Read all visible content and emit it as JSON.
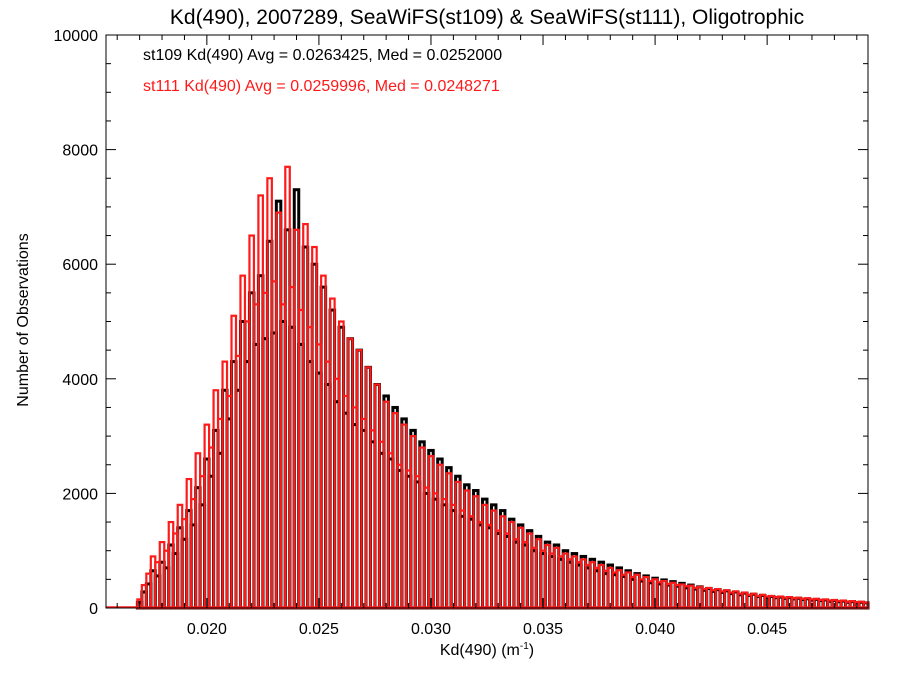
{
  "chart_data": {
    "type": "bar",
    "title": "Kd(490), 2007289, SeaWiFS(st109) & SeaWiFS(st111), Oligotrophic",
    "xlabel": "Kd(490) (m",
    "xlabel_sup": "-1",
    "xlabel_close": ")",
    "ylabel": "Number of Observations",
    "xlim": [
      0.0155,
      0.0495
    ],
    "ylim": [
      0,
      10000
    ],
    "bin_width": 0.0002,
    "x_ticks": [
      0.02,
      0.025,
      0.03,
      0.035,
      0.04,
      0.045
    ],
    "x_tick_labels": [
      "0.020",
      "0.025",
      "0.030",
      "0.035",
      "0.040",
      "0.045"
    ],
    "y_ticks": [
      0,
      2000,
      4000,
      6000,
      8000,
      10000
    ],
    "y_tick_labels": [
      "0",
      "2000",
      "4000",
      "6000",
      "8000",
      "10000"
    ],
    "legend_position": "top-left",
    "series": [
      {
        "name": "st109",
        "color": "#000000",
        "stats_label": "st109 Kd(490) Avg = 0.0263425, Med = 0.0252000",
        "x": [
          0.017,
          0.0172,
          0.0174,
          0.0176,
          0.0178,
          0.018,
          0.0182,
          0.0184,
          0.0186,
          0.0188,
          0.019,
          0.0192,
          0.0194,
          0.0196,
          0.0198,
          0.02,
          0.0202,
          0.0204,
          0.0206,
          0.0208,
          0.021,
          0.0212,
          0.0214,
          0.0216,
          0.0218,
          0.022,
          0.0222,
          0.0224,
          0.0226,
          0.0228,
          0.023,
          0.0232,
          0.0234,
          0.0236,
          0.0238,
          0.024,
          0.0242,
          0.0244,
          0.0246,
          0.0248,
          0.025,
          0.0252,
          0.0254,
          0.0256,
          0.0258,
          0.026,
          0.0262,
          0.0264,
          0.0266,
          0.0268,
          0.027,
          0.0272,
          0.0274,
          0.0276,
          0.0278,
          0.028,
          0.0282,
          0.0284,
          0.0286,
          0.0288,
          0.029,
          0.0292,
          0.0294,
          0.0296,
          0.0298,
          0.03,
          0.0302,
          0.0304,
          0.0306,
          0.0308,
          0.031,
          0.0312,
          0.0314,
          0.0316,
          0.0318,
          0.032,
          0.0322,
          0.0324,
          0.0326,
          0.0328,
          0.033,
          0.0332,
          0.0334,
          0.0336,
          0.0338,
          0.034,
          0.0342,
          0.0344,
          0.0346,
          0.0348,
          0.035,
          0.0352,
          0.0354,
          0.0356,
          0.0358,
          0.036,
          0.0362,
          0.0364,
          0.0366,
          0.0368,
          0.037,
          0.0372,
          0.0374,
          0.0376,
          0.0378,
          0.038,
          0.0382,
          0.0384,
          0.0386,
          0.0388,
          0.039,
          0.0392,
          0.0394,
          0.0396,
          0.0398,
          0.04,
          0.0402,
          0.0404,
          0.0406,
          0.0408,
          0.041,
          0.0412,
          0.0414,
          0.0416,
          0.0418,
          0.042,
          0.0422,
          0.0424,
          0.0426,
          0.0428,
          0.043,
          0.0432,
          0.0434,
          0.0436,
          0.0438,
          0.044,
          0.0442,
          0.0444,
          0.0446,
          0.0448,
          0.045,
          0.0452,
          0.0454,
          0.0456,
          0.0458,
          0.046,
          0.0462,
          0.0464,
          0.0466,
          0.0468,
          0.047,
          0.0472,
          0.0474,
          0.0476,
          0.0478,
          0.048,
          0.0482,
          0.0484,
          0.0486,
          0.0488,
          0.049,
          0.0492,
          0.0494
        ],
        "values": [
          100,
          280,
          420,
          650,
          560,
          800,
          700,
          1100,
          950,
          1400,
          1200,
          1700,
          1450,
          2100,
          1800,
          2600,
          2300,
          3100,
          2700,
          3800,
          3300,
          4300,
          3800,
          5000,
          4300,
          5500,
          4600,
          5800,
          4700,
          6400,
          4800,
          7100,
          5000,
          6600,
          4900,
          7300,
          4600,
          6300,
          4300,
          6000,
          4100,
          5600,
          3900,
          5200,
          3600,
          4900,
          3400,
          4700,
          3200,
          4500,
          3100,
          4200,
          2900,
          3900,
          2700,
          3700,
          2600,
          3500,
          2400,
          3300,
          2300,
          3100,
          2200,
          2900,
          2000,
          2750,
          1900,
          2600,
          1800,
          2450,
          1700,
          2300,
          1600,
          2150,
          1550,
          2050,
          1450,
          1900,
          1400,
          1800,
          1300,
          1700,
          1250,
          1550,
          1150,
          1450,
          1100,
          1350,
          1000,
          1250,
          950,
          1150,
          900,
          1100,
          850,
          1000,
          800,
          950,
          750,
          900,
          700,
          850,
          650,
          800,
          600,
          750,
          580,
          700,
          550,
          650,
          500,
          600,
          470,
          560,
          440,
          520,
          420,
          490,
          400,
          460,
          380,
          430,
          350,
          400,
          330,
          370,
          310,
          340,
          290,
          320,
          270,
          300,
          250,
          280,
          230,
          260,
          220,
          240,
          200,
          220,
          190,
          200,
          180,
          190,
          170,
          180,
          160,
          170,
          150,
          160,
          140,
          150,
          130,
          140,
          120,
          130,
          110,
          120,
          100,
          110,
          95,
          100,
          90
        ]
      },
      {
        "name": "st111",
        "color": "#ff1a1a",
        "stats_label": "st111 Kd(490) Avg = 0.0259996, Med = 0.0248271",
        "x": [
          0.017,
          0.0172,
          0.0174,
          0.0176,
          0.0178,
          0.018,
          0.0182,
          0.0184,
          0.0186,
          0.0188,
          0.019,
          0.0192,
          0.0194,
          0.0196,
          0.0198,
          0.02,
          0.0202,
          0.0204,
          0.0206,
          0.0208,
          0.021,
          0.0212,
          0.0214,
          0.0216,
          0.0218,
          0.022,
          0.0222,
          0.0224,
          0.0226,
          0.0228,
          0.023,
          0.0232,
          0.0234,
          0.0236,
          0.0238,
          0.024,
          0.0242,
          0.0244,
          0.0246,
          0.0248,
          0.025,
          0.0252,
          0.0254,
          0.0256,
          0.0258,
          0.026,
          0.0262,
          0.0264,
          0.0266,
          0.0268,
          0.027,
          0.0272,
          0.0274,
          0.0276,
          0.0278,
          0.028,
          0.0282,
          0.0284,
          0.0286,
          0.0288,
          0.029,
          0.0292,
          0.0294,
          0.0296,
          0.0298,
          0.03,
          0.0302,
          0.0304,
          0.0306,
          0.0308,
          0.031,
          0.0312,
          0.0314,
          0.0316,
          0.0318,
          0.032,
          0.0322,
          0.0324,
          0.0326,
          0.0328,
          0.033,
          0.0332,
          0.0334,
          0.0336,
          0.0338,
          0.034,
          0.0342,
          0.0344,
          0.0346,
          0.0348,
          0.035,
          0.0352,
          0.0354,
          0.0356,
          0.0358,
          0.036,
          0.0362,
          0.0364,
          0.0366,
          0.0368,
          0.037,
          0.0372,
          0.0374,
          0.0376,
          0.0378,
          0.038,
          0.0382,
          0.0384,
          0.0386,
          0.0388,
          0.039,
          0.0392,
          0.0394,
          0.0396,
          0.0398,
          0.04,
          0.0402,
          0.0404,
          0.0406,
          0.0408,
          0.041,
          0.0412,
          0.0414,
          0.0416,
          0.0418,
          0.042,
          0.0422,
          0.0424,
          0.0426,
          0.0428,
          0.043,
          0.0432,
          0.0434,
          0.0436,
          0.0438,
          0.044,
          0.0442,
          0.0444,
          0.0446,
          0.0448,
          0.045,
          0.0452,
          0.0454,
          0.0456,
          0.0458,
          0.046,
          0.0462,
          0.0464,
          0.0466,
          0.0468,
          0.047,
          0.0472,
          0.0474,
          0.0476,
          0.0478,
          0.048,
          0.0482,
          0.0484,
          0.0486,
          0.0488,
          0.049,
          0.0492,
          0.0494
        ],
        "values": [
          150,
          400,
          600,
          900,
          800,
          1150,
          1000,
          1500,
          1300,
          1800,
          1550,
          2250,
          1900,
          2700,
          2300,
          3200,
          2800,
          3800,
          3300,
          4300,
          3700,
          5100,
          4400,
          5800,
          5000,
          6500,
          5300,
          7200,
          5500,
          7500,
          5700,
          6900,
          5300,
          7700,
          5600,
          6600,
          5200,
          6700,
          4900,
          6300,
          4600,
          5800,
          4300,
          5400,
          4000,
          5000,
          3700,
          4700,
          3500,
          4500,
          3300,
          4200,
          3100,
          3900,
          2900,
          3600,
          2700,
          3400,
          2500,
          3200,
          2400,
          3000,
          2300,
          2800,
          2100,
          2650,
          2000,
          2500,
          1900,
          2350,
          1800,
          2200,
          1700,
          2050,
          1600,
          1950,
          1500,
          1800,
          1450,
          1700,
          1350,
          1600,
          1300,
          1500,
          1200,
          1400,
          1150,
          1300,
          1050,
          1200,
          1000,
          1100,
          950,
          1050,
          900,
          950,
          850,
          900,
          800,
          850,
          750,
          800,
          700,
          750,
          650,
          700,
          620,
          660,
          580,
          620,
          540,
          580,
          500,
          540,
          470,
          500,
          450,
          470,
          420,
          440,
          400,
          410,
          380,
          390,
          350,
          370,
          330,
          350,
          310,
          330,
          290,
          310,
          270,
          290,
          250,
          270,
          230,
          250,
          210,
          230,
          200,
          210,
          190,
          200,
          180,
          190,
          170,
          180,
          160,
          170,
          150,
          160,
          140,
          150,
          130,
          140,
          120,
          130,
          110,
          120,
          100,
          110,
          95
        ]
      }
    ]
  }
}
